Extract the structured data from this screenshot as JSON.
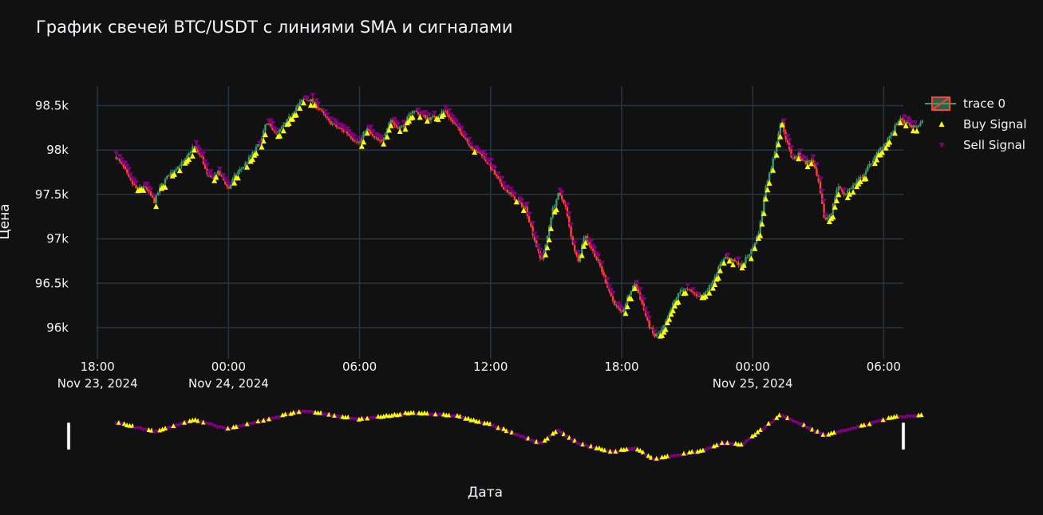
{
  "chart_data": {
    "type": "candlestick",
    "title": "График свечей BTC/USDT с линиями SMA и сигналами",
    "xlabel": "Дата",
    "ylabel": "Цена",
    "xlim_hours": [
      -1.25,
      36.9
    ],
    "ylim": [
      95650,
      98720
    ],
    "x_ticks": [
      {
        "h": 0,
        "line1": "18:00",
        "line2": "Nov 23, 2024"
      },
      {
        "h": 6,
        "line1": "00:00",
        "line2": "Nov 24, 2024"
      },
      {
        "h": 12,
        "line1": "06:00",
        "line2": ""
      },
      {
        "h": 18,
        "line1": "12:00",
        "line2": ""
      },
      {
        "h": 24,
        "line1": "18:00",
        "line2": ""
      },
      {
        "h": 30,
        "line1": "00:00",
        "line2": "Nov 25, 2024"
      },
      {
        "h": 36,
        "line1": "06:00",
        "line2": ""
      }
    ],
    "y_ticks": [
      {
        "v": 96000,
        "label": "96k"
      },
      {
        "v": 96500,
        "label": "96.5k"
      },
      {
        "v": 97000,
        "label": "97k"
      },
      {
        "v": 97500,
        "label": "97.5k"
      },
      {
        "v": 98000,
        "label": "98k"
      },
      {
        "v": 98500,
        "label": "98.5k"
      }
    ],
    "price_path": [
      [
        0.85,
        97920
      ],
      [
        1.2,
        97800
      ],
      [
        1.5,
        97650
      ],
      [
        1.8,
        97560
      ],
      [
        2.1,
        97600
      ],
      [
        2.4,
        97500
      ],
      [
        2.6,
        97420
      ],
      [
        2.9,
        97600
      ],
      [
        3.2,
        97700
      ],
      [
        3.5,
        97780
      ],
      [
        4.0,
        97880
      ],
      [
        4.4,
        98050
      ],
      [
        4.8,
        97900
      ],
      [
        5.0,
        97720
      ],
      [
        5.2,
        97680
      ],
      [
        5.5,
        97750
      ],
      [
        5.8,
        97650
      ],
      [
        6.0,
        97560
      ],
      [
        6.3,
        97720
      ],
      [
        6.7,
        97820
      ],
      [
        7.2,
        98000
      ],
      [
        7.5,
        98100
      ],
      [
        7.7,
        98300
      ],
      [
        8.0,
        98250
      ],
      [
        8.2,
        98180
      ],
      [
        8.6,
        98300
      ],
      [
        9.0,
        98450
      ],
      [
        9.4,
        98570
      ],
      [
        9.8,
        98560
      ],
      [
        10.2,
        98450
      ],
      [
        10.6,
        98320
      ],
      [
        11.0,
        98250
      ],
      [
        11.4,
        98200
      ],
      [
        11.7,
        98120
      ],
      [
        12.0,
        98080
      ],
      [
        12.3,
        98250
      ],
      [
        12.6,
        98150
      ],
      [
        13.0,
        98080
      ],
      [
        13.4,
        98350
      ],
      [
        13.7,
        98250
      ],
      [
        14.0,
        98270
      ],
      [
        14.4,
        98450
      ],
      [
        14.8,
        98400
      ],
      [
        15.2,
        98350
      ],
      [
        15.6,
        98400
      ],
      [
        15.9,
        98450
      ],
      [
        16.3,
        98300
      ],
      [
        16.8,
        98150
      ],
      [
        17.2,
        98000
      ],
      [
        17.6,
        97950
      ],
      [
        18.0,
        97800
      ],
      [
        18.5,
        97600
      ],
      [
        18.9,
        97500
      ],
      [
        19.3,
        97400
      ],
      [
        19.6,
        97350
      ],
      [
        20.0,
        97000
      ],
      [
        20.3,
        96750
      ],
      [
        20.5,
        96900
      ],
      [
        20.8,
        97300
      ],
      [
        21.1,
        97500
      ],
      [
        21.4,
        97400
      ],
      [
        21.7,
        97000
      ],
      [
        22.0,
        96750
      ],
      [
        22.3,
        97050
      ],
      [
        22.6,
        96900
      ],
      [
        23.0,
        96700
      ],
      [
        23.3,
        96500
      ],
      [
        23.6,
        96300
      ],
      [
        24.0,
        96150
      ],
      [
        24.3,
        96350
      ],
      [
        24.6,
        96500
      ],
      [
        24.9,
        96300
      ],
      [
        25.2,
        96050
      ],
      [
        25.5,
        95900
      ],
      [
        25.8,
        95950
      ],
      [
        26.1,
        96100
      ],
      [
        26.4,
        96300
      ],
      [
        26.8,
        96450
      ],
      [
        27.2,
        96400
      ],
      [
        27.6,
        96350
      ],
      [
        28.0,
        96450
      ],
      [
        28.4,
        96650
      ],
      [
        28.7,
        96800
      ],
      [
        29.1,
        96750
      ],
      [
        29.5,
        96700
      ],
      [
        30.0,
        96900
      ],
      [
        30.3,
        97100
      ],
      [
        30.6,
        97600
      ],
      [
        30.9,
        97850
      ],
      [
        31.1,
        98100
      ],
      [
        31.3,
        98350
      ],
      [
        31.5,
        98150
      ],
      [
        31.8,
        97900
      ],
      [
        32.1,
        97950
      ],
      [
        32.4,
        97850
      ],
      [
        32.7,
        97900
      ],
      [
        33.0,
        97650
      ],
      [
        33.3,
        97200
      ],
      [
        33.6,
        97300
      ],
      [
        33.9,
        97600
      ],
      [
        34.2,
        97500
      ],
      [
        34.6,
        97600
      ],
      [
        35.0,
        97700
      ],
      [
        35.4,
        97850
      ],
      [
        35.8,
        98000
      ],
      [
        36.1,
        98100
      ],
      [
        36.4,
        98200
      ],
      [
        36.7,
        98350
      ],
      [
        37.0,
        98300
      ],
      [
        37.4,
        98250
      ],
      [
        37.8,
        98320
      ]
    ],
    "range_slider_path": [
      [
        0.85,
        97920
      ],
      [
        2.6,
        97420
      ],
      [
        4.4,
        98050
      ],
      [
        6.0,
        97560
      ],
      [
        9.4,
        98570
      ],
      [
        12.0,
        98080
      ],
      [
        14.4,
        98450
      ],
      [
        16.3,
        98300
      ],
      [
        18.0,
        97800
      ],
      [
        20.3,
        96750
      ],
      [
        21.1,
        97500
      ],
      [
        22.0,
        96750
      ],
      [
        23.6,
        96300
      ],
      [
        24.6,
        96500
      ],
      [
        25.5,
        95900
      ],
      [
        27.6,
        96350
      ],
      [
        28.7,
        96800
      ],
      [
        29.5,
        96700
      ],
      [
        31.3,
        98350
      ],
      [
        33.3,
        97200
      ],
      [
        34.6,
        97600
      ],
      [
        36.4,
        98200
      ],
      [
        37.8,
        98320
      ]
    ],
    "series": [
      {
        "name": "trace 0",
        "kind": "candlestick"
      },
      {
        "name": "Buy Signal",
        "kind": "marker-triangle-up",
        "color": "#ffff00"
      },
      {
        "name": "Sell Signal",
        "kind": "marker-triangle-down",
        "color": "#800080"
      }
    ],
    "colors": {
      "background": "#111111",
      "grid": "#283442",
      "increasing": "#3d9970",
      "decreasing": "#ff4136",
      "buy": "#ffff00",
      "sell": "#800080"
    },
    "legend_position": "top-right",
    "range_slider": true,
    "candle_interval_minutes": 5
  }
}
